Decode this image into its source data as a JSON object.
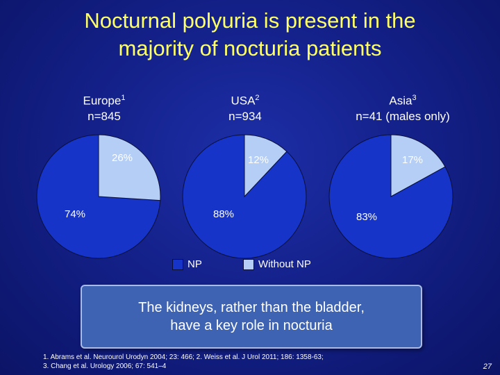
{
  "slide": {
    "title_line1": "Nocturnal polyuria is present in the",
    "title_line2": "majority of nocturia patients",
    "callout_line1": "The kidneys, rather than the bladder,",
    "callout_line2": "have a key role in nocturia",
    "refs_line1": "1. Abrams et al. Neurourol Urodyn 2004; 23: 466; 2. Weiss et al. J Urol 2011; 186: 1358-63;",
    "refs_line2": "3. Chang et al. Urology 2006; 67: 541–4",
    "page_number": "27"
  },
  "colors": {
    "np": "#1634c8",
    "without_np": "#b4cef5",
    "title": "#ffff66"
  },
  "chart_data": [
    {
      "type": "pie",
      "title": "Europe",
      "superscript": "1",
      "subtitle": "n=845",
      "categories": [
        "NP",
        "Without NP"
      ],
      "values": [
        74,
        26
      ],
      "labels": [
        "74%",
        "26%"
      ]
    },
    {
      "type": "pie",
      "title": "USA",
      "superscript": "2",
      "subtitle": "n=934",
      "categories": [
        "NP",
        "Without NP"
      ],
      "values": [
        88,
        12
      ],
      "labels": [
        "88%",
        "12%"
      ]
    },
    {
      "type": "pie",
      "title": "Asia",
      "superscript": "3",
      "subtitle": "n=41 (males only)",
      "categories": [
        "NP",
        "Without NP"
      ],
      "values": [
        83,
        17
      ],
      "labels": [
        "83%",
        "17%"
      ]
    }
  ],
  "legend": {
    "items": [
      "NP",
      "Without NP"
    ],
    "placement": "bottom"
  }
}
